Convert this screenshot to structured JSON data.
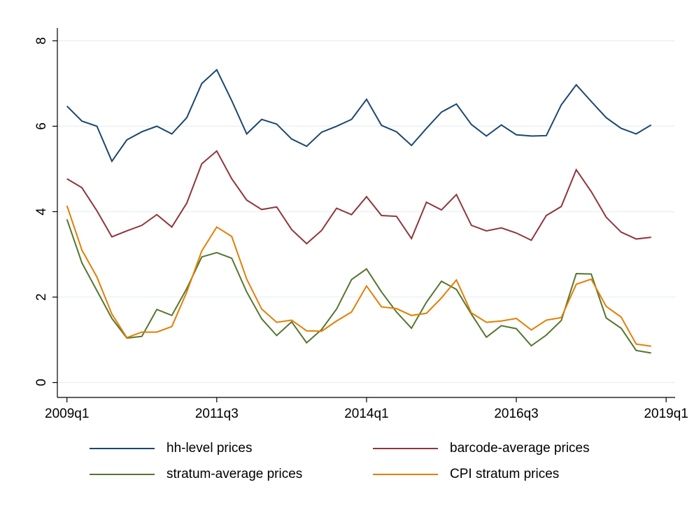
{
  "chart_data": {
    "type": "line",
    "x": [
      2009,
      2009.25,
      2009.5,
      2009.75,
      2010,
      2010.25,
      2010.5,
      2010.75,
      2011,
      2011.25,
      2011.5,
      2011.75,
      2012,
      2012.25,
      2012.5,
      2012.75,
      2013,
      2013.25,
      2013.5,
      2013.75,
      2014,
      2014.25,
      2014.5,
      2014.75,
      2015,
      2015.25,
      2015.5,
      2015.75,
      2016,
      2016.25,
      2016.5,
      2016.75,
      2017,
      2017.25,
      2017.5,
      2017.75,
      2018,
      2018.25,
      2018.5,
      2018.75
    ],
    "series": [
      {
        "name": "hh-level prices",
        "color": "#1a476f",
        "values": [
          6.47,
          6.12,
          6.0,
          5.18,
          5.68,
          5.87,
          6.0,
          5.82,
          6.2,
          7.0,
          7.32,
          6.6,
          5.82,
          6.16,
          6.05,
          5.7,
          5.53,
          5.86,
          6.0,
          6.16,
          6.63,
          6.02,
          5.87,
          5.55,
          5.95,
          6.33,
          6.52,
          6.04,
          5.77,
          6.03,
          5.8,
          5.77,
          5.78,
          6.5,
          6.97,
          6.58,
          6.2,
          5.95,
          5.82,
          6.03
        ]
      },
      {
        "name": "barcode-average prices",
        "color": "#90353b",
        "values": [
          4.77,
          4.56,
          4.02,
          3.41,
          3.55,
          3.68,
          3.93,
          3.64,
          4.2,
          5.12,
          5.42,
          4.77,
          4.27,
          4.05,
          4.11,
          3.58,
          3.25,
          3.56,
          4.08,
          3.93,
          4.35,
          3.91,
          3.89,
          3.37,
          4.22,
          4.04,
          4.4,
          3.68,
          3.55,
          3.62,
          3.5,
          3.33,
          3.91,
          4.12,
          4.98,
          4.47,
          3.87,
          3.52,
          3.36,
          3.4
        ]
      },
      {
        "name": "stratum-average prices",
        "color": "#55752f",
        "values": [
          3.82,
          2.8,
          2.15,
          1.5,
          1.04,
          1.08,
          1.71,
          1.57,
          2.2,
          2.94,
          3.04,
          2.91,
          2.12,
          1.49,
          1.1,
          1.42,
          0.93,
          1.24,
          1.72,
          2.41,
          2.66,
          2.12,
          1.65,
          1.27,
          1.88,
          2.37,
          2.18,
          1.6,
          1.06,
          1.33,
          1.26,
          0.86,
          1.11,
          1.45,
          2.55,
          2.54,
          1.51,
          1.27,
          0.75,
          0.69
        ]
      },
      {
        "name": "CPI stratum prices",
        "color": "#e37e00",
        "values": [
          4.14,
          3.1,
          2.47,
          1.6,
          1.05,
          1.18,
          1.18,
          1.31,
          2.12,
          3.08,
          3.64,
          3.42,
          2.42,
          1.72,
          1.41,
          1.46,
          1.21,
          1.2,
          1.44,
          1.65,
          2.26,
          1.77,
          1.73,
          1.57,
          1.62,
          1.98,
          2.4,
          1.63,
          1.41,
          1.44,
          1.5,
          1.23,
          1.46,
          1.52,
          2.3,
          2.42,
          1.78,
          1.53,
          0.9,
          0.85
        ]
      }
    ],
    "xlim": [
      2008.84,
      2019.15
    ],
    "xticks": [
      {
        "value": 2009,
        "label": "2009q1"
      },
      {
        "value": 2011.5,
        "label": "2011q3"
      },
      {
        "value": 2014,
        "label": "2014q1"
      },
      {
        "value": 2016.5,
        "label": "2016q3"
      },
      {
        "value": 2019,
        "label": "2019q1"
      }
    ],
    "ylim": [
      -0.35,
      8.3
    ],
    "yticks": [
      0,
      2,
      4,
      6,
      8
    ],
    "grid": true,
    "legend": "bottom"
  }
}
